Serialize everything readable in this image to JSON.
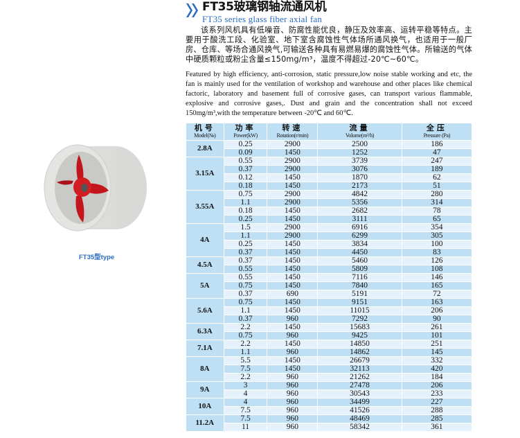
{
  "header": {
    "title": "FT35玻璃钢轴流通风机",
    "subtitle": "FT35 series glass fiber axial fan",
    "accent_color": "#2a6cc0"
  },
  "description_cn": "该系列风机具有低噪音、防腐性能优良，静压及效率高、运转平稳等特点。主要用于酸洗工段、化验室、地下室含腐蚀性气体场所通风换气，也适用于一般厂房、仓库、等场合通风换气,可输送各种具有易燃易爆的腐蚀性气体。所输送的气体中硬质颗粒或粉尘含量≤150mg/m³，温度不得超过-20℃~60℃。",
  "description_en": "Featured by high efficiency, anti-corrosion, static pressure,low noise stable working and etc, the fan is mainly used for the ventilation of workshop and warehouse  and other places like chemical factoric, laboratory and basement full of corrosive gases, can transport various flammable, explosive and corrosive gases,. Dust and grain and the concentration shall not exceed 150mg/m³,with the temperature between -20℃ and 60℃.",
  "image": {
    "caption": "FT35型type"
  },
  "table": {
    "headers": [
      {
        "zh": "机号",
        "en": "Model(№)"
      },
      {
        "zh": "功率",
        "en": "Power(kW)"
      },
      {
        "zh": "转速",
        "en": "Rotation(r/min)"
      },
      {
        "zh": "流量",
        "en": "Volume(m³/h)"
      },
      {
        "zh": "全压",
        "en": "Pressure (Pa)"
      }
    ],
    "groups": [
      {
        "model": "2.8A",
        "rows": [
          [
            "0.25",
            "2900",
            "2500",
            "186"
          ],
          [
            "0.09",
            "1450",
            "1252",
            "47"
          ]
        ]
      },
      {
        "model": "3.15A",
        "rows": [
          [
            "0.55",
            "2900",
            "3739",
            "247"
          ],
          [
            "0.37",
            "2900",
            "3076",
            "189"
          ],
          [
            "0.12",
            "1450",
            "1870",
            "62"
          ],
          [
            "0.18",
            "1450",
            "2173",
            "51"
          ]
        ]
      },
      {
        "model": "3.55A",
        "rows": [
          [
            "0.75",
            "2900",
            "4842",
            "280"
          ],
          [
            "1.1",
            "2900",
            "5356",
            "314"
          ],
          [
            "0.18",
            "1450",
            "2682",
            "78"
          ],
          [
            "0.25",
            "1450",
            "3111",
            "65"
          ]
        ]
      },
      {
        "model": "4A",
        "rows": [
          [
            "1.5",
            "2900",
            "6916",
            "354"
          ],
          [
            "1.1",
            "2900",
            "6299",
            "305"
          ],
          [
            "0.25",
            "1450",
            "3834",
            "100"
          ],
          [
            "0.37",
            "1450",
            "4450",
            "83"
          ]
        ]
      },
      {
        "model": "4.5A",
        "rows": [
          [
            "0.37",
            "1450",
            "5460",
            "126"
          ],
          [
            "0.55",
            "1450",
            "5809",
            "108"
          ]
        ]
      },
      {
        "model": "5A",
        "rows": [
          [
            "0.55",
            "1450",
            "7116",
            "146"
          ],
          [
            "0.75",
            "1450",
            "7840",
            "165"
          ],
          [
            "0.37",
            "690",
            "5191",
            "72"
          ]
        ]
      },
      {
        "model": "5.6A",
        "rows": [
          [
            "0.75",
            "1450",
            "9151",
            "163"
          ],
          [
            "1.1",
            "1450",
            "11015",
            "206"
          ],
          [
            "0.37",
            "960",
            "7292",
            "90"
          ]
        ]
      },
      {
        "model": "6.3A",
        "rows": [
          [
            "2.2",
            "1450",
            "15683",
            "261"
          ],
          [
            "0.75",
            "960",
            "9425",
            "101"
          ]
        ]
      },
      {
        "model": "7.1A",
        "rows": [
          [
            "2.2",
            "1450",
            "14850",
            "251"
          ],
          [
            "1.1",
            "960",
            "14862",
            "145"
          ]
        ]
      },
      {
        "model": "8A",
        "rows": [
          [
            "5.5",
            "1450",
            "26679",
            "332"
          ],
          [
            "7.5",
            "1450",
            "32113",
            "420"
          ],
          [
            "2.2",
            "960",
            "21262",
            "184"
          ]
        ]
      },
      {
        "model": "9A",
        "rows": [
          [
            "3",
            "960",
            "27478",
            "206"
          ],
          [
            "4",
            "960",
            "30543",
            "233"
          ]
        ]
      },
      {
        "model": "10A",
        "rows": [
          [
            "4",
            "960",
            "34499",
            "227"
          ],
          [
            "7.5",
            "960",
            "41526",
            "288"
          ]
        ]
      },
      {
        "model": "11.2A",
        "rows": [
          [
            "7.5",
            "960",
            "48469",
            "285"
          ],
          [
            "11",
            "960",
            "58342",
            "361"
          ]
        ]
      }
    ]
  }
}
